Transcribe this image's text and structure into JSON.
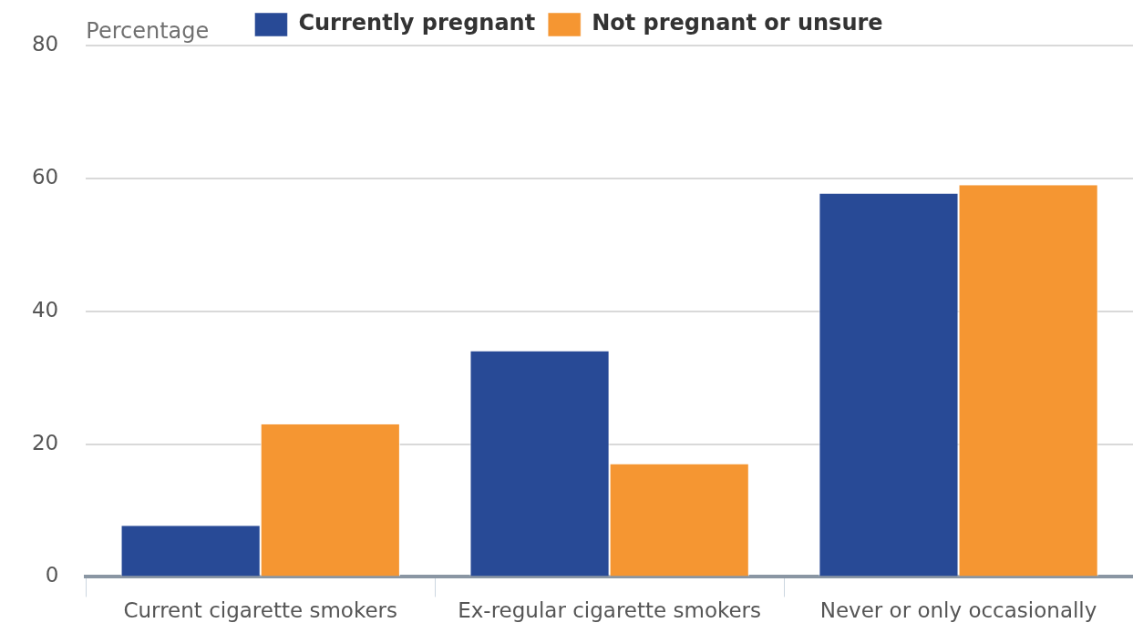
{
  "chart_data": {
    "type": "bar",
    "ylabel": "Percentage",
    "categories": [
      "Current cigarette smokers",
      "Ex-regular cigarette smokers",
      "Never or only occasionally"
    ],
    "series": [
      {
        "name": "Currently pregnant",
        "color": "#284a96",
        "values": [
          7.7,
          34,
          57.7
        ]
      },
      {
        "name": "Not pregnant or unsure",
        "color": "#f59632",
        "values": [
          23,
          17,
          59
        ]
      }
    ],
    "ylim": [
      0,
      80
    ],
    "yticks": [
      0,
      20,
      40,
      60,
      80
    ],
    "grid": "y",
    "legend": "top"
  }
}
